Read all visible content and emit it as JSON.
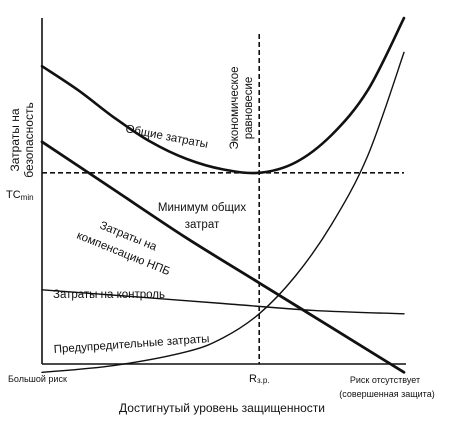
{
  "chart_data": {
    "type": "line",
    "title": "",
    "xlabel": "Достигнутый уровень защищенности",
    "ylabel_line1": "Затраты на",
    "ylabel_line2": "безопасность",
    "x_tick_left": "Большой риск",
    "x_tick_mid": "R",
    "x_tick_mid_sub": "з.р.",
    "x_tick_right_line1": "Риск отсутствует",
    "x_tick_right_line2": "(совершенная защита)",
    "y_tick": "TC",
    "y_tick_sub": "min",
    "vline_label_line1": "Экономическое",
    "vline_label_line2": "равновесие",
    "hline_label_line1": "Минимум общих",
    "hline_label_line2": "затрат",
    "x_range": [
      0,
      1
    ],
    "y_range": [
      0,
      1
    ],
    "equilibrium_x": 0.6,
    "min_total_cost_y": 0.55,
    "grid": false,
    "legend": "none",
    "series": [
      {
        "name": "Общие затраты",
        "label_lines": [
          "Общие затраты"
        ],
        "points": [
          [
            0,
            0.86
          ],
          [
            0.1,
            0.79
          ],
          [
            0.2,
            0.71
          ],
          [
            0.3,
            0.64
          ],
          [
            0.4,
            0.59
          ],
          [
            0.5,
            0.56
          ],
          [
            0.6,
            0.55
          ],
          [
            0.7,
            0.58
          ],
          [
            0.8,
            0.66
          ],
          [
            0.9,
            0.79
          ],
          [
            1,
            1
          ]
        ]
      },
      {
        "name": "Затраты на компенсацию НПБ",
        "label_lines": [
          "Затраты на",
          "компенсацию НПБ"
        ],
        "points": [
          [
            0,
            0.64
          ],
          [
            0.2,
            0.5
          ],
          [
            0.4,
            0.36
          ],
          [
            0.6,
            0.23
          ],
          [
            0.8,
            0.1
          ],
          [
            1,
            -0.03
          ]
        ]
      },
      {
        "name": "Затраты на контроль",
        "label_lines": [
          "Затраты на контроль"
        ],
        "points": [
          [
            0,
            0.21
          ],
          [
            0.25,
            0.19
          ],
          [
            0.5,
            0.17
          ],
          [
            0.75,
            0.15
          ],
          [
            1,
            0.14
          ]
        ]
      },
      {
        "name": "Предупредительные затраты",
        "label_lines": [
          "Предупредительные затраты"
        ],
        "points": [
          [
            0,
            -0.03
          ],
          [
            0.2,
            -0.01
          ],
          [
            0.4,
            0.03
          ],
          [
            0.5,
            0.07
          ],
          [
            0.6,
            0.14
          ],
          [
            0.7,
            0.25
          ],
          [
            0.8,
            0.4
          ],
          [
            0.9,
            0.6
          ],
          [
            1,
            0.9
          ]
        ]
      }
    ]
  }
}
